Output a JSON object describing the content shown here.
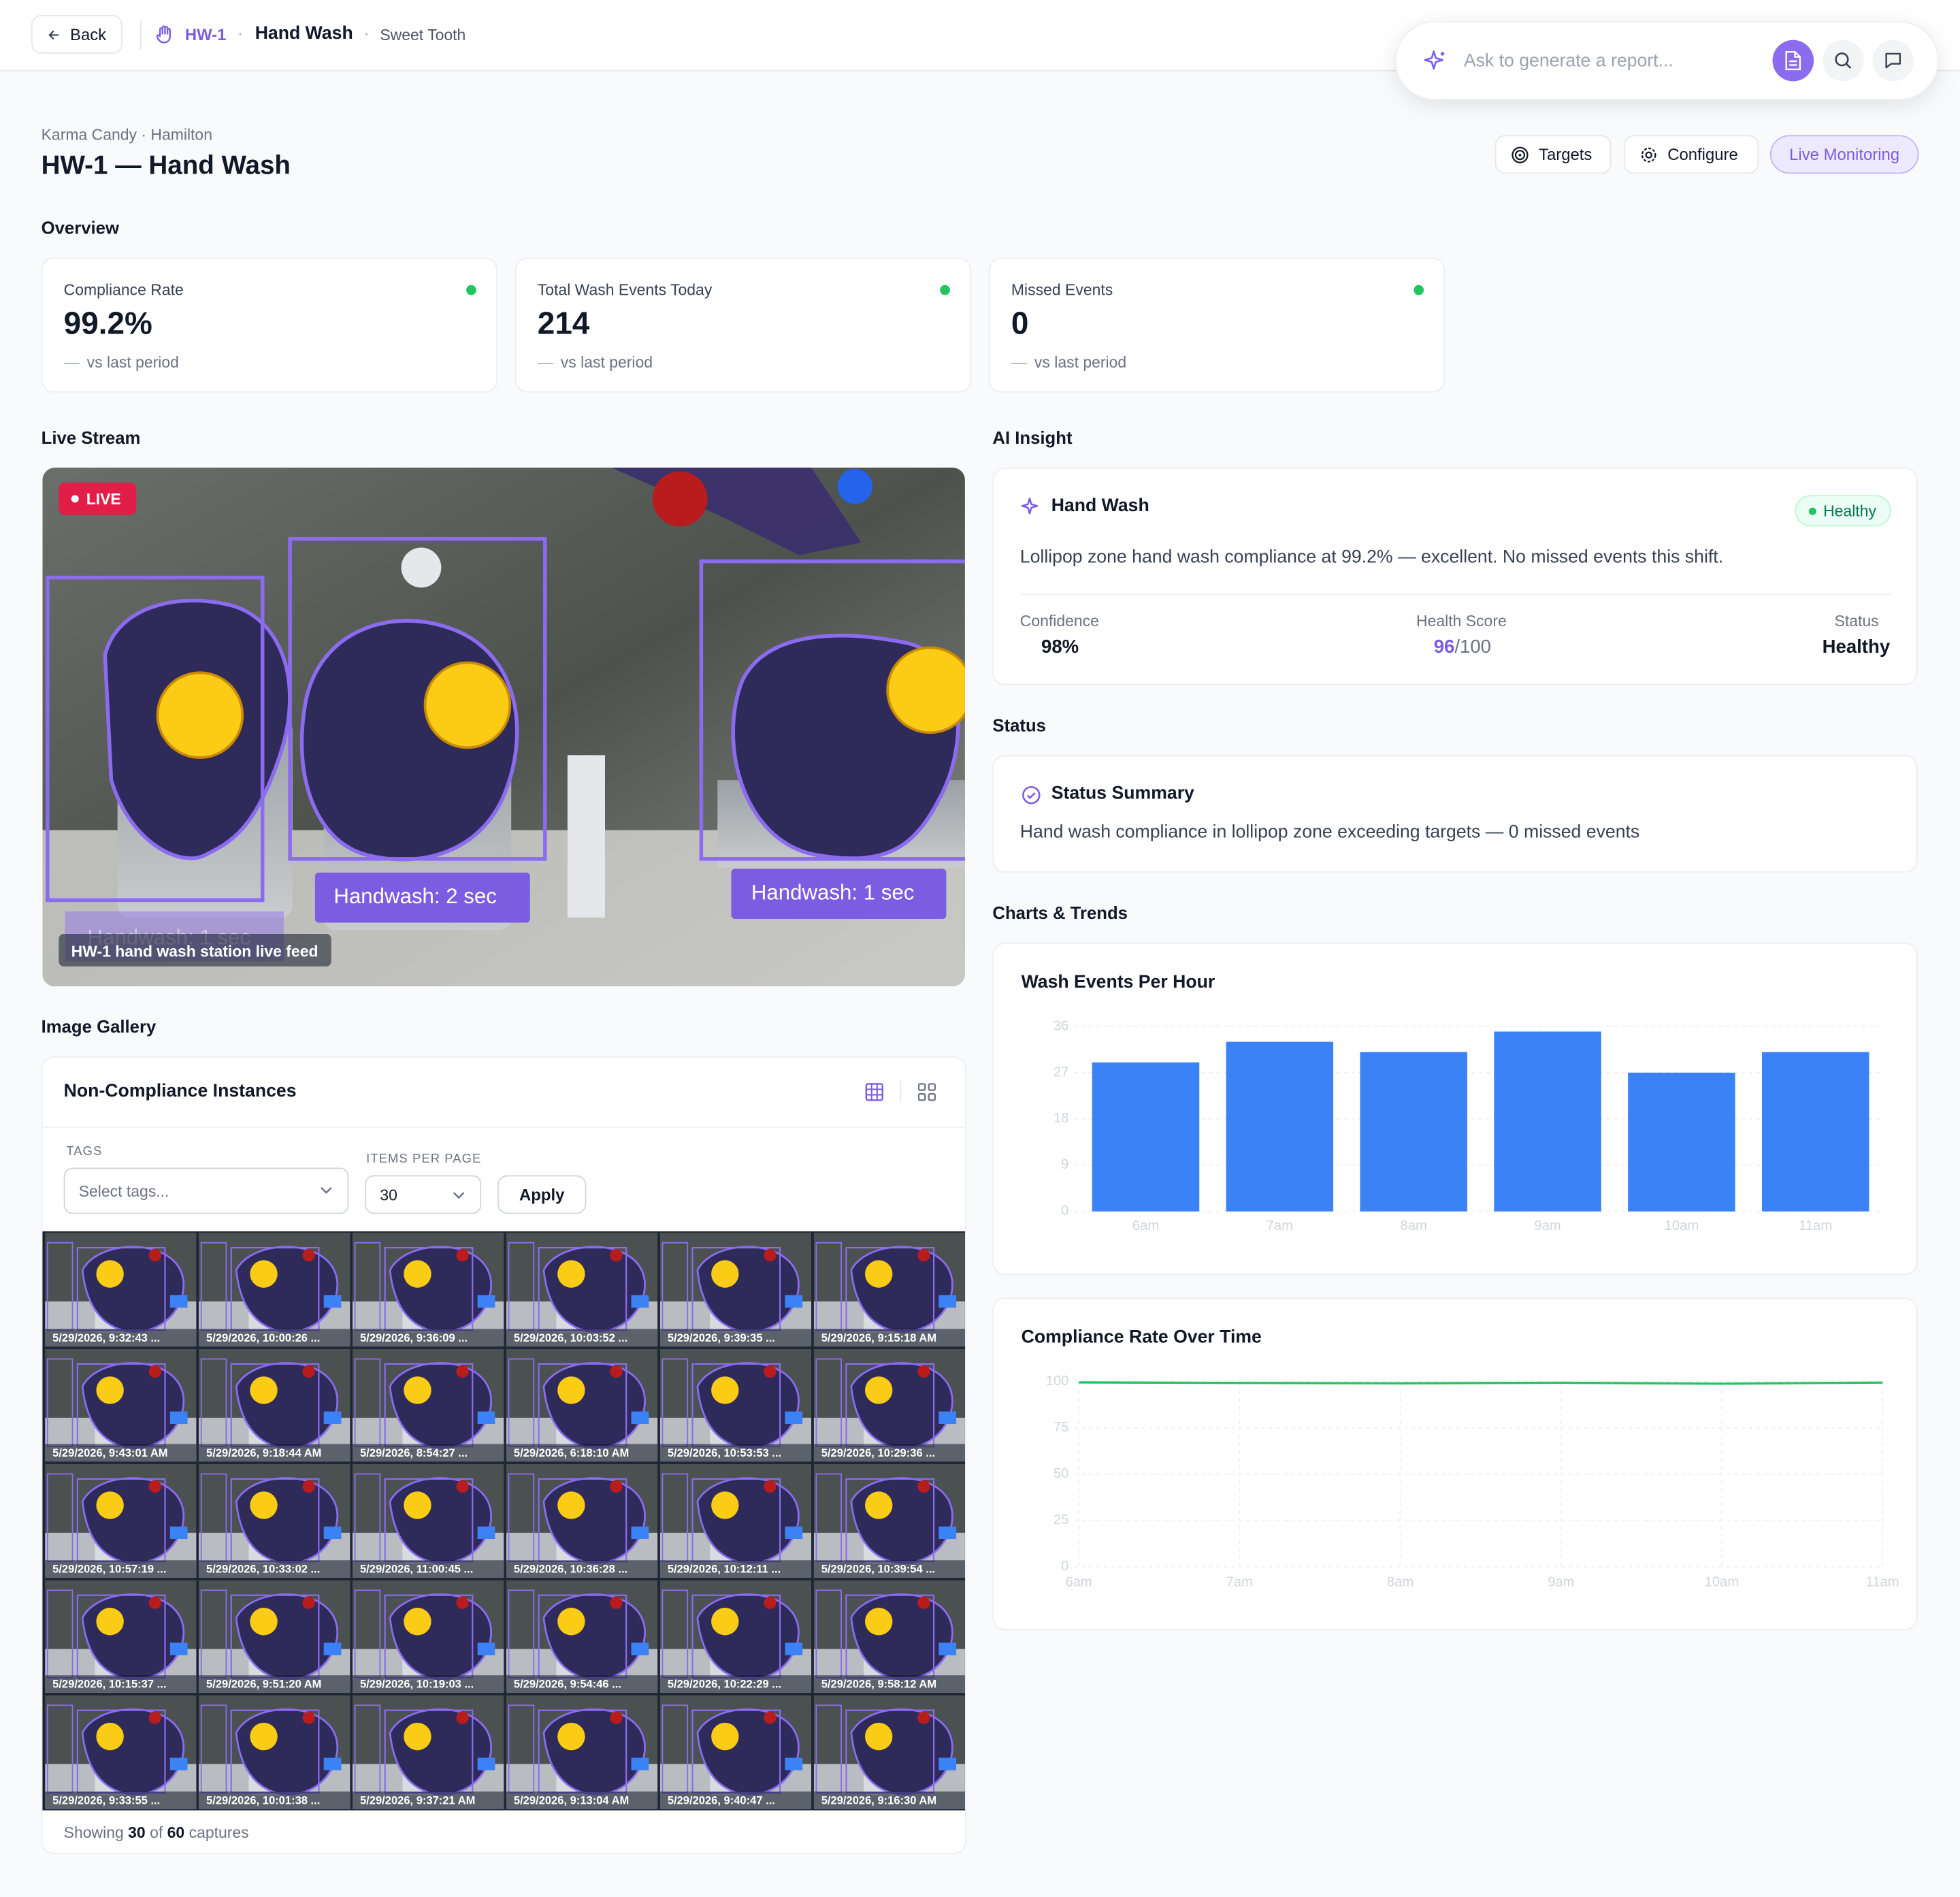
{
  "header": {
    "back": "Back",
    "id": "HW-1",
    "name": "Hand Wash",
    "site": "Sweet Tooth",
    "ask_placeholder": "Ask to generate a report..."
  },
  "page": {
    "breadcrumb": "Karma Candy · Hamilton",
    "title": "HW-1 — Hand Wash",
    "actions": [
      "Targets",
      "Configure",
      "Live Monitoring"
    ]
  },
  "overview": {
    "heading": "Overview",
    "cards": [
      {
        "label": "Compliance Rate",
        "value": "99.2%",
        "delta": "—",
        "note": "vs last period"
      },
      {
        "label": "Total Wash Events Today",
        "value": "214",
        "delta": "—",
        "note": "vs last period"
      },
      {
        "label": "Missed Events",
        "value": "0",
        "delta": "—",
        "note": "vs last period"
      }
    ]
  },
  "live_stream": {
    "heading": "Live Stream",
    "badge": "LIVE",
    "caption": "HW-1 hand wash station live feed",
    "detections": [
      "Handwash:  2 sec",
      "Handwash:  1 sec",
      "Handwash:  1 sec"
    ]
  },
  "ai_insight": {
    "heading": "AI Insight",
    "title": "Hand Wash",
    "badge": "Healthy",
    "text": "Lollipop zone hand wash compliance at 99.2% — excellent. No missed events this shift.",
    "metrics": [
      {
        "label": "Confidence",
        "value": "98%"
      },
      {
        "label": "Health Score",
        "value": "96",
        "suffix": "/100"
      },
      {
        "label": "Status",
        "value": "Healthy"
      }
    ]
  },
  "status": {
    "heading": "Status",
    "title": "Status Summary",
    "text": "Hand wash compliance in lollipop zone exceeding targets — 0 missed events"
  },
  "charts_heading": "Charts & Trends",
  "chart_data": [
    {
      "type": "bar",
      "title": "Wash Events Per Hour",
      "categories": [
        "6am",
        "7am",
        "8am",
        "9am",
        "10am",
        "11am"
      ],
      "values": [
        29,
        33,
        31,
        35,
        27,
        31
      ],
      "color": "#3b82f6",
      "ylim": [
        0,
        36
      ],
      "yticks": [
        0,
        9,
        18,
        27,
        36
      ],
      "grid": true
    },
    {
      "type": "line",
      "title": "Compliance Rate Over Time",
      "categories": [
        "6am",
        "7am",
        "8am",
        "9am",
        "10am",
        "11am"
      ],
      "values": [
        99.5,
        99.2,
        99.0,
        99.3,
        98.8,
        99.4
      ],
      "color": "#22c55e",
      "ylim": [
        0,
        100
      ],
      "yticks": [
        0,
        25,
        50,
        75,
        100
      ],
      "grid": true
    }
  ],
  "gallery": {
    "heading": "Image Gallery",
    "title": "Non-Compliance Instances",
    "tags_label": "TAGS",
    "tags_placeholder": "Select tags...",
    "per_page_label": "ITEMS PER PAGE",
    "per_page": "30",
    "apply": "Apply",
    "captures": [
      "5/29/2026, 9:32:43 ...",
      "5/29/2026, 10:00:26 ...",
      "5/29/2026, 9:36:09 ...",
      "5/29/2026, 10:03:52 ...",
      "5/29/2026, 9:39:35 ...",
      "5/29/2026, 9:15:18 AM",
      "5/29/2026, 9:43:01 AM",
      "5/29/2026, 9:18:44 AM",
      "5/29/2026, 8:54:27 ...",
      "5/29/2026, 6:18:10 AM",
      "5/29/2026, 10:53:53 ...",
      "5/29/2026, 10:29:36 ...",
      "5/29/2026, 10:57:19 ...",
      "5/29/2026, 10:33:02 ...",
      "5/29/2026, 11:00:45 ...",
      "5/29/2026, 10:36:28 ...",
      "5/29/2026, 10:12:11 ...",
      "5/29/2026, 10:39:54 ...",
      "5/29/2026, 10:15:37 ...",
      "5/29/2026, 9:51:20 AM",
      "5/29/2026, 10:19:03 ...",
      "5/29/2026, 9:54:46 ...",
      "5/29/2026, 10:22:29 ...",
      "5/29/2026, 9:58:12 AM",
      "5/29/2026, 9:33:55 ...",
      "5/29/2026, 10:01:38 ...",
      "5/29/2026, 9:37:21 AM",
      "5/29/2026, 9:13:04 AM",
      "5/29/2026, 9:40:47 ...",
      "5/29/2026, 9:16:30 AM"
    ],
    "footer": {
      "prefix": "Showing",
      "shown": 30,
      "middle": "of",
      "total": 60,
      "suffix": "captures"
    }
  }
}
